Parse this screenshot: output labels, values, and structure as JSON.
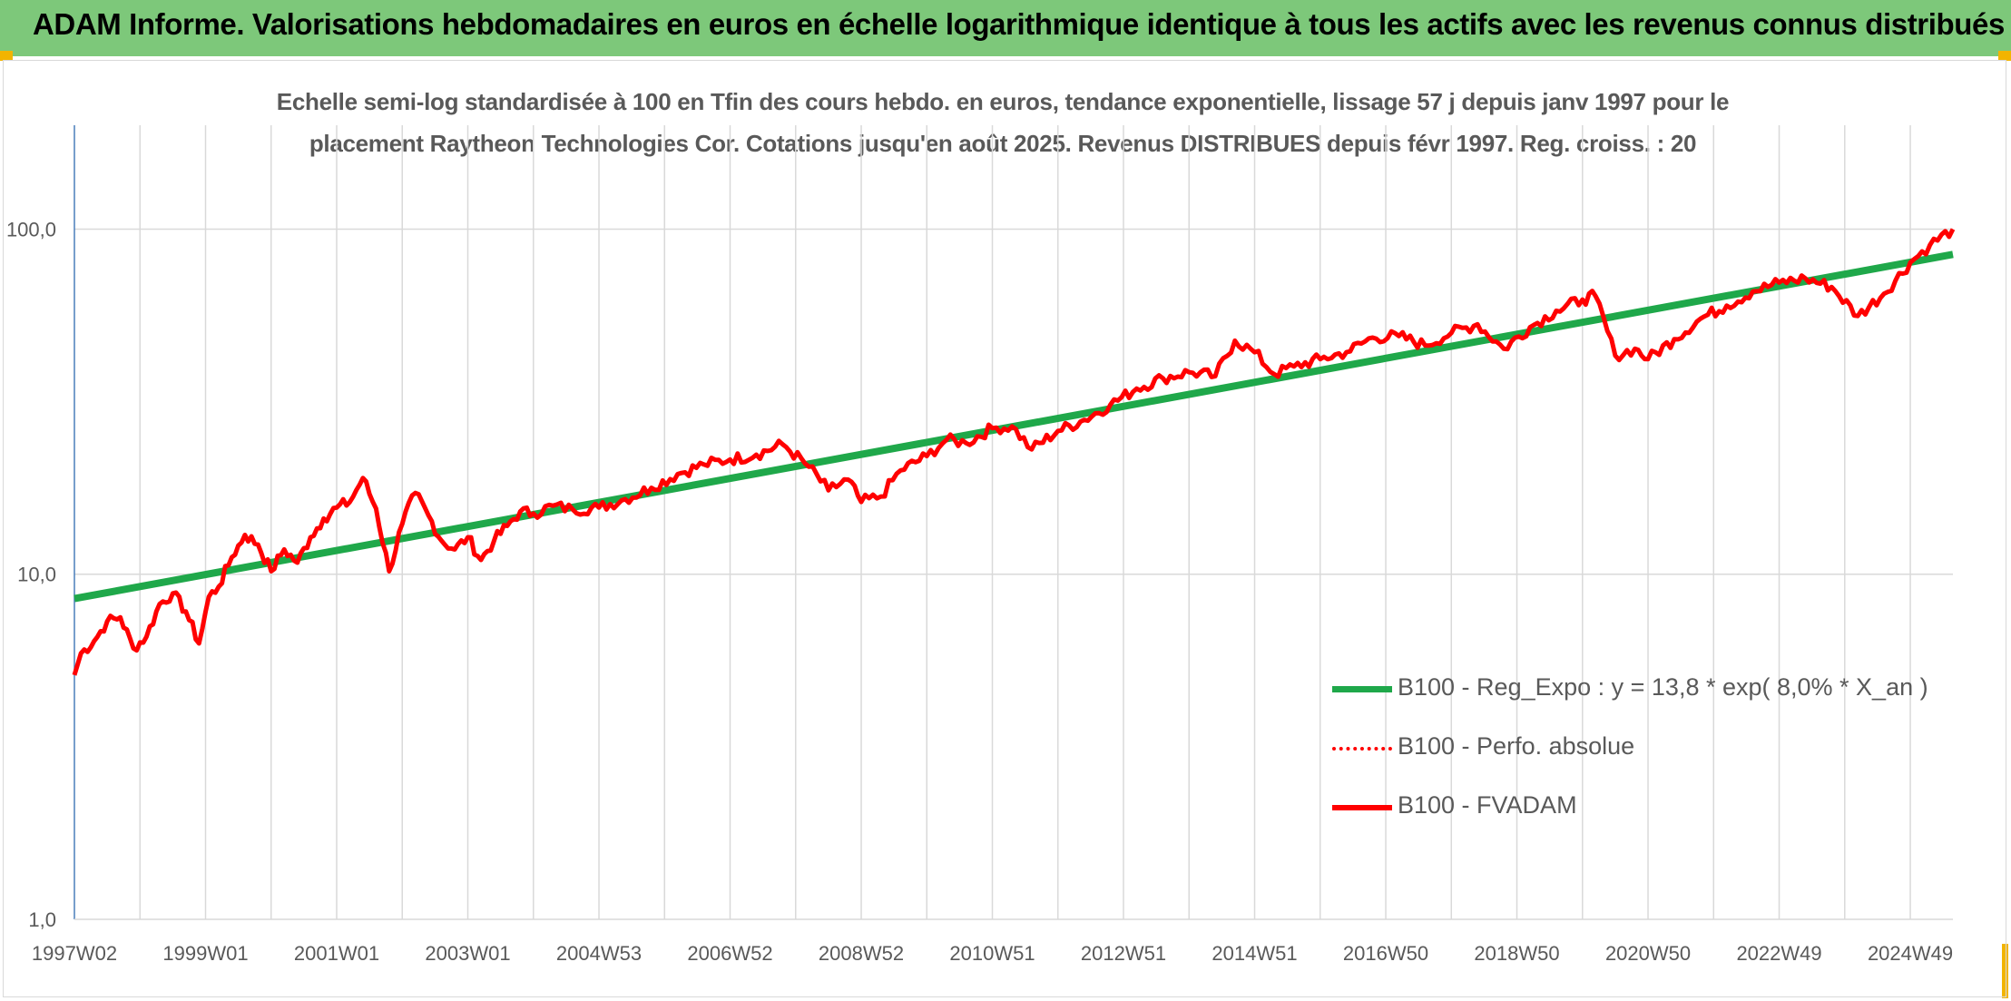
{
  "header": {
    "title": "ADAM Informe. Valorisations hebdomadaires en euros en échelle logarithmique identique à tous les actifs avec les revenus connus distribués"
  },
  "colors": {
    "banner": "#7dc87a",
    "trend": "#1fa84a",
    "fvadam": "#ff0000",
    "perfo": "#ff0000",
    "grid": "#d9d9d9",
    "axis_text": "#595959"
  },
  "chart_data": {
    "type": "line",
    "title_line1": "Echelle semi-log standardisée à 100 en Tfin des cours hebdo. en euros, tendance exponentielle, lissage 57 j depuis janv 1997 pour le",
    "title_line2": "placement Raytheon Technologies Cor. Cotations jusqu'en août 2025. Revenus DISTRIBUES depuis févr 1997. Reg. croiss. : 20",
    "y_scale": "log",
    "ylim": [
      1,
      200
    ],
    "y_ticks": [
      1,
      10,
      100
    ],
    "y_tick_labels": [
      "1,0",
      "10,0",
      "100,0"
    ],
    "xlim": [
      1997.0,
      2025.65
    ],
    "x_tick_labels": [
      "1997W02",
      "1999W01",
      "2001W01",
      "2003W01",
      "2004W53",
      "2006W52",
      "2008W52",
      "2010W51",
      "2012W51",
      "2014W51",
      "2016W50",
      "2018W50",
      "2020W50",
      "2022W49",
      "2024W49"
    ],
    "x_tick_positions": [
      1997.0,
      1999.0,
      2001.0,
      2003.0,
      2005.0,
      2007.0,
      2009.0,
      2011.0,
      2013.0,
      2015.0,
      2017.0,
      2019.0,
      2021.0,
      2023.0,
      2025.0
    ],
    "grid": true,
    "legend_position": "bottom-right",
    "series": [
      {
        "name": "B100 - Reg_Expo : y = 13,8 * exp( 8,0% *  X_an )",
        "style": "solid-thick",
        "x": [
          1997.0,
          2025.65
        ],
        "y": [
          8.5,
          84.5
        ]
      },
      {
        "name": "B100 - Perfo. absolue",
        "style": "dotted",
        "x": [],
        "y": []
      },
      {
        "name": "B100 - FVADAM",
        "style": "solid",
        "x": [
          1997.0,
          1997.1,
          1997.3,
          1997.5,
          1997.7,
          1997.9,
          1998.1,
          1998.3,
          1998.5,
          1998.7,
          1998.9,
          1999.05,
          1999.2,
          1999.4,
          1999.6,
          1999.8,
          2000.0,
          2000.2,
          2000.4,
          2000.6,
          2000.8,
          2001.0,
          2001.2,
          2001.4,
          2001.6,
          2001.8,
          2002.0,
          2002.2,
          2002.4,
          2002.6,
          2002.8,
          2003.0,
          2003.2,
          2003.4,
          2003.6,
          2003.8,
          2004.0,
          2004.3,
          2004.6,
          2005.0,
          2005.4,
          2005.8,
          2006.2,
          2006.6,
          2007.0,
          2007.4,
          2007.8,
          2008.2,
          2008.5,
          2008.8,
          2009.0,
          2009.3,
          2009.6,
          2010.0,
          2010.3,
          2010.6,
          2011.0,
          2011.3,
          2011.6,
          2012.0,
          2012.4,
          2012.8,
          2013.2,
          2013.6,
          2014.0,
          2014.4,
          2014.7,
          2015.0,
          2015.3,
          2015.6,
          2016.0,
          2016.4,
          2016.8,
          2017.2,
          2017.6,
          2018.0,
          2018.4,
          2018.8,
          2019.2,
          2019.6,
          2020.0,
          2020.2,
          2020.5,
          2020.8,
          2021.0,
          2021.4,
          2021.8,
          2022.2,
          2022.6,
          2023.0,
          2023.4,
          2023.8,
          2024.2,
          2024.6,
          2025.0,
          2025.3,
          2025.65
        ],
        "y": [
          5.1,
          5.9,
          6.4,
          7.3,
          7.5,
          6.1,
          6.6,
          8.2,
          8.8,
          7.8,
          6.3,
          8.6,
          9.2,
          11.2,
          13.0,
          12.2,
          10.2,
          11.8,
          10.8,
          12.8,
          14.5,
          15.6,
          16.2,
          19.0,
          15.5,
          10.2,
          14.0,
          17.2,
          14.8,
          12.5,
          11.8,
          12.8,
          11.0,
          12.5,
          13.8,
          15.2,
          15.0,
          15.8,
          15.4,
          15.6,
          16.5,
          17.8,
          19.5,
          20.8,
          21.5,
          22.2,
          23.8,
          20.5,
          17.5,
          18.8,
          16.2,
          16.8,
          20.0,
          22.0,
          24.5,
          24.0,
          26.5,
          26.8,
          23.0,
          26.0,
          28.0,
          31.0,
          34.5,
          37.0,
          38.5,
          37.5,
          47.5,
          44.0,
          38.0,
          40.0,
          42.0,
          44.0,
          48.5,
          49.0,
          46.0,
          50.0,
          53.0,
          45.0,
          52.0,
          58.0,
          62.5,
          64.0,
          43.0,
          45.0,
          42.0,
          48.0,
          55.0,
          60.0,
          66.0,
          70.0,
          72.0,
          68.0,
          56.0,
          65.0,
          80.0,
          90.0,
          100.0
        ]
      }
    ]
  }
}
